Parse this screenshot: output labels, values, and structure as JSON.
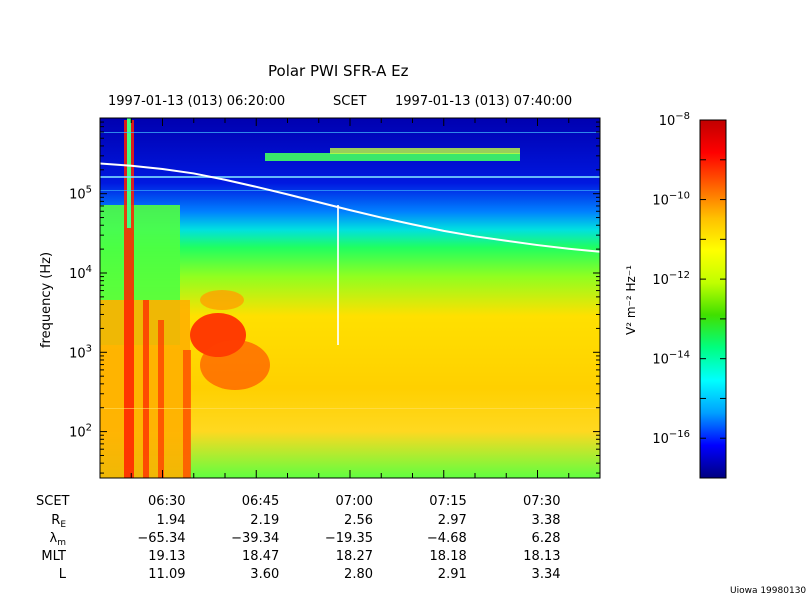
{
  "chart_data": {
    "type": "heatmap",
    "title": "Polar PWI SFR-A Ez",
    "top_axis": {
      "start_label": "1997-01-13 (013) 06:20:00",
      "center_label": "SCET",
      "end_label": "1997-01-13 (013) 07:40:00"
    },
    "ylabel": "frequency (Hz)",
    "y_scale": "log",
    "ylim": [
      26,
      900000
    ],
    "y_ticks": [
      {
        "value": 100,
        "base": "10",
        "exp": "2"
      },
      {
        "value": 1000,
        "base": "10",
        "exp": "3"
      },
      {
        "value": 10000,
        "base": "10",
        "exp": "4"
      },
      {
        "value": 100000,
        "base": "10",
        "exp": "5"
      }
    ],
    "x_time_range": [
      "06:20:00",
      "07:40:00"
    ],
    "x_ticks": [
      "06:30",
      "06:45",
      "07:00",
      "07:15",
      "07:30"
    ],
    "colorbar": {
      "label": "V² m⁻² Hz⁻¹",
      "scale": "log",
      "range": [
        1e-17,
        1e-08
      ],
      "ticks": [
        {
          "value": 1e-08,
          "base": "10",
          "exp": "−8"
        },
        {
          "value": 1e-10,
          "base": "10",
          "exp": "−10"
        },
        {
          "value": 1e-12,
          "base": "10",
          "exp": "−12"
        },
        {
          "value": 1e-14,
          "base": "10",
          "exp": "−14"
        },
        {
          "value": 1e-16,
          "base": "10",
          "exp": "−16"
        }
      ],
      "colors": [
        "#000080",
        "#0000ff",
        "#00a0ff",
        "#00ffff",
        "#00ff80",
        "#40e000",
        "#c0ff00",
        "#ffff00",
        "#ffc000",
        "#ff6000",
        "#ff0000",
        "#c00000"
      ]
    },
    "series": [
      {
        "name": "",
        "type": "line",
        "color": "#ffffff",
        "x_minutes": [
          0,
          5,
          10,
          15,
          20,
          25,
          30,
          35,
          40,
          45,
          50,
          55,
          60,
          65,
          70,
          75,
          80
        ],
        "y": [
          240000,
          225000,
          205000,
          180000,
          150000,
          122000,
          98000,
          78000,
          62000,
          50000,
          41000,
          34000,
          29000,
          25500,
          22500,
          20200,
          18500
        ]
      }
    ],
    "ephemeris": {
      "rows": [
        {
          "label": "SCET",
          "sub": "",
          "values": [
            "06:30",
            "06:45",
            "07:00",
            "07:15",
            "07:30"
          ]
        },
        {
          "label": "R",
          "sub": "E",
          "values": [
            "1.94",
            "2.19",
            "2.56",
            "2.97",
            "3.38"
          ]
        },
        {
          "label": "λ",
          "sub": "m",
          "values": [
            "−65.34",
            "−39.34",
            "−19.35",
            "−4.68",
            "6.28"
          ]
        },
        {
          "label": "MLT",
          "sub": "",
          "values": [
            "19.13",
            "18.47",
            "18.27",
            "18.18",
            "18.13"
          ]
        },
        {
          "label": "L",
          "sub": "",
          "values": [
            "11.09",
            "3.60",
            "2.80",
            "2.91",
            "3.34"
          ]
        }
      ]
    }
  },
  "footer": {
    "credit": "Uiowa 19980130"
  }
}
